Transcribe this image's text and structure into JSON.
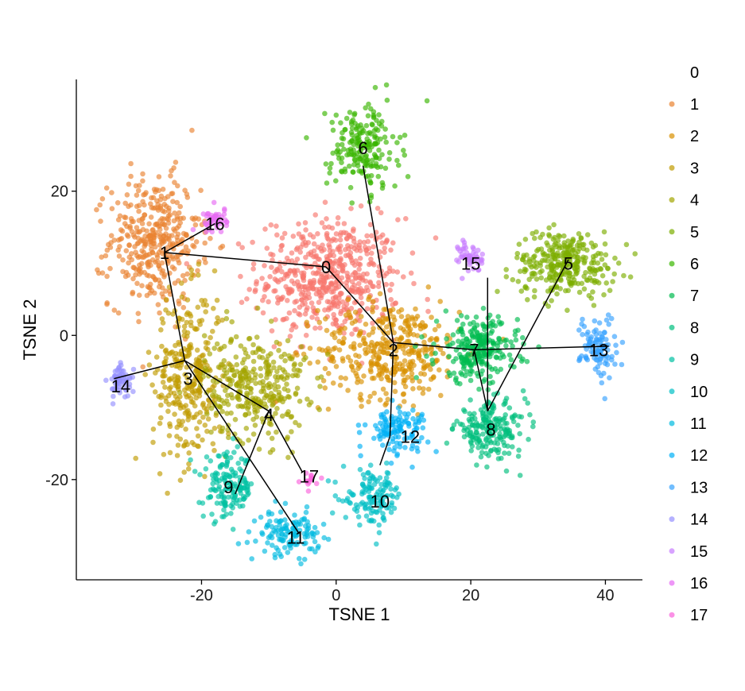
{
  "chart_data": {
    "type": "scatter",
    "xlabel": "TSNE 1",
    "ylabel": "TSNE 2",
    "xlim": [
      -38.6,
      45.5
    ],
    "ylim": [
      -33.9,
      35.5
    ],
    "xticks": [
      -20,
      0,
      20,
      40
    ],
    "yticks": [
      -20,
      0,
      20
    ],
    "xtick_labels": [
      "-20",
      "0",
      "20",
      "40"
    ],
    "ytick_labels": [
      "-20",
      "0",
      "20"
    ],
    "grid": false,
    "legend_position": "right",
    "legend_labels": [
      "0",
      "1",
      "2",
      "3",
      "4",
      "5",
      "6",
      "7",
      "8",
      "9",
      "10",
      "11",
      "12",
      "13",
      "14",
      "15",
      "16",
      "17"
    ],
    "legend_title": "0",
    "colors": [
      "#f8766d",
      "#ea8331",
      "#d89000",
      "#c09b00",
      "#a3a500",
      "#7cae00",
      "#39b600",
      "#00bb4e",
      "#00bf7d",
      "#00c1a3",
      "#00bfc4",
      "#00bae0",
      "#00b0f6",
      "#35a2ff",
      "#9590ff",
      "#c77cff",
      "#e76bf3",
      "#fa62db",
      "#ff62bc",
      "#ff6a98"
    ],
    "clusters": [
      {
        "label": "0",
        "x": -1.5,
        "y": 9.5
      },
      {
        "label": "1",
        "x": -25.5,
        "y": 11.5
      },
      {
        "label": "2",
        "x": 8.5,
        "y": -2
      },
      {
        "label": "3",
        "x": -22,
        "y": -6
      },
      {
        "label": "4",
        "x": -10,
        "y": -11
      },
      {
        "label": "5",
        "x": 34.5,
        "y": 10
      },
      {
        "label": "6",
        "x": 4,
        "y": 26
      },
      {
        "label": "7",
        "x": 20.5,
        "y": -2
      },
      {
        "label": "8",
        "x": 23,
        "y": -13
      },
      {
        "label": "9",
        "x": -16,
        "y": -21
      },
      {
        "label": "10",
        "x": 6.5,
        "y": -23
      },
      {
        "label": "11",
        "x": -6,
        "y": -28
      },
      {
        "label": "12",
        "x": 11,
        "y": -14
      },
      {
        "label": "13",
        "x": 39,
        "y": -2
      },
      {
        "label": "14",
        "x": -32,
        "y": -7
      },
      {
        "label": "15",
        "x": 20,
        "y": 10
      },
      {
        "label": "16",
        "x": -18,
        "y": 15.5
      },
      {
        "label": "17",
        "x": -4,
        "y": -19.5
      }
    ],
    "trajectory_edges": [
      [
        [
          -25.5,
          11.5
        ],
        [
          -18,
          15.5
        ]
      ],
      [
        [
          -25.5,
          11.5
        ],
        [
          -1.5,
          9.5
        ]
      ],
      [
        [
          -25.5,
          11.5
        ],
        [
          -22.5,
          -3.5
        ]
      ],
      [
        [
          -22.5,
          -3.5
        ],
        [
          -33,
          -6
        ]
      ],
      [
        [
          -22.5,
          -3.5
        ],
        [
          -10,
          -10.5
        ]
      ],
      [
        [
          -22.5,
          -3.5
        ],
        [
          -5.5,
          -27.5
        ]
      ],
      [
        [
          -10,
          -10.5
        ],
        [
          -5,
          -19
        ]
      ],
      [
        [
          -10,
          -10.5
        ],
        [
          -15,
          -22
        ]
      ],
      [
        [
          -1.5,
          9.5
        ],
        [
          8.5,
          -1
        ]
      ],
      [
        [
          4,
          23.5
        ],
        [
          8.5,
          -1
        ]
      ],
      [
        [
          8.5,
          -1
        ],
        [
          8,
          -14
        ]
      ],
      [
        [
          8,
          -14
        ],
        [
          6.5,
          -18
        ]
      ],
      [
        [
          8.5,
          -1
        ],
        [
          20.5,
          -2
        ]
      ],
      [
        [
          20.5,
          -2
        ],
        [
          40.5,
          -1.5
        ]
      ],
      [
        [
          22.5,
          8
        ],
        [
          22.5,
          -10.5
        ]
      ],
      [
        [
          20.5,
          -2
        ],
        [
          22.5,
          -10.5
        ]
      ],
      [
        [
          34.5,
          10.5
        ],
        [
          22.5,
          -10.5
        ]
      ]
    ],
    "scatter_clusters": [
      {
        "cluster": "0",
        "color_index": 0,
        "cx": -1,
        "cy": 8,
        "sx": 7,
        "sy": 5.5,
        "n": 550
      },
      {
        "cluster": "1",
        "color_index": 1,
        "cx": -27,
        "cy": 13,
        "sx": 4.5,
        "sy": 6,
        "n": 380
      },
      {
        "cluster": "2",
        "color_index": 2,
        "cx": 8,
        "cy": -2,
        "sx": 7,
        "sy": 4.5,
        "n": 380
      },
      {
        "cluster": "3",
        "color_index": 3,
        "cx": -22,
        "cy": -6,
        "sx": 3.5,
        "sy": 8,
        "n": 320
      },
      {
        "cluster": "4",
        "color_index": 4,
        "cx": -12,
        "cy": -7,
        "sx": 5,
        "sy": 5,
        "n": 320
      },
      {
        "cluster": "5",
        "color_index": 5,
        "cx": 34,
        "cy": 10,
        "sx": 5,
        "sy": 3,
        "n": 300
      },
      {
        "cluster": "6",
        "color_index": 6,
        "cx": 4,
        "cy": 26,
        "sx": 3.5,
        "sy": 4,
        "n": 200
      },
      {
        "cluster": "7",
        "color_index": 7,
        "cx": 21,
        "cy": -2,
        "sx": 4,
        "sy": 3,
        "n": 250
      },
      {
        "cluster": "8",
        "color_index": 8,
        "cx": 23,
        "cy": -13,
        "sx": 3.5,
        "sy": 2.5,
        "n": 200
      },
      {
        "cluster": "9",
        "color_index": 9,
        "cx": -16,
        "cy": -21,
        "sx": 2.5,
        "sy": 3,
        "n": 150
      },
      {
        "cluster": "10",
        "color_index": 10,
        "cx": 5.5,
        "cy": -22.5,
        "sx": 3,
        "sy": 2.5,
        "n": 130
      },
      {
        "cluster": "11",
        "color_index": 11,
        "cx": -7,
        "cy": -27.5,
        "sx": 3,
        "sy": 2,
        "n": 130
      },
      {
        "cluster": "12",
        "color_index": 12,
        "cx": 9,
        "cy": -13,
        "sx": 3,
        "sy": 2,
        "n": 120
      },
      {
        "cluster": "13",
        "color_index": 13,
        "cx": 39,
        "cy": -1.5,
        "sx": 1.8,
        "sy": 3,
        "n": 100
      },
      {
        "cluster": "14",
        "color_index": 14,
        "cx": -32,
        "cy": -6.5,
        "sx": 1.2,
        "sy": 1.5,
        "n": 60
      },
      {
        "cluster": "15",
        "color_index": 15,
        "cx": 20,
        "cy": 11,
        "sx": 1.2,
        "sy": 1.5,
        "n": 50
      },
      {
        "cluster": "16",
        "color_index": 16,
        "cx": -18,
        "cy": 16,
        "sx": 1.2,
        "sy": 1.2,
        "n": 45
      },
      {
        "cluster": "17",
        "color_index": 17,
        "cx": -4,
        "cy": -20,
        "sx": 0.8,
        "sy": 0.8,
        "n": 15
      }
    ]
  }
}
